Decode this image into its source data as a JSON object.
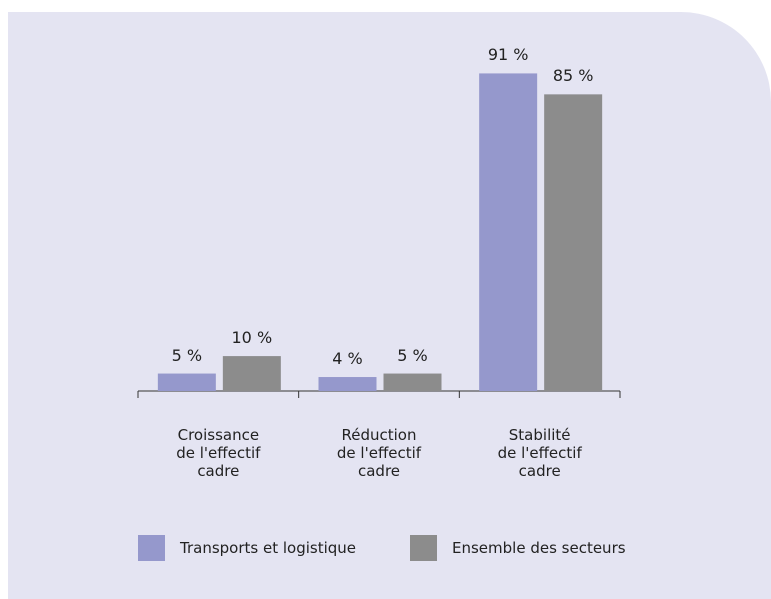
{
  "chart_data": {
    "type": "bar",
    "categories": [
      "Croissance\nde l'effectif\ncadre",
      "Réduction\nde l'effectif\ncadre",
      "Stabilité\nde l'effectif\ncadre"
    ],
    "series": [
      {
        "name": "Transports et logistique",
        "color": "#9598cc",
        "values": [
          5,
          4,
          91
        ],
        "value_labels": [
          "5 %",
          "4 %",
          "91 %"
        ]
      },
      {
        "name": "Ensemble des secteurs",
        "color": "#8c8c8c",
        "values": [
          10,
          5,
          85
        ],
        "value_labels": [
          "10 %",
          "5 %",
          "85 %"
        ]
      }
    ],
    "ylim": [
      0,
      100
    ],
    "legend": "bottom"
  }
}
